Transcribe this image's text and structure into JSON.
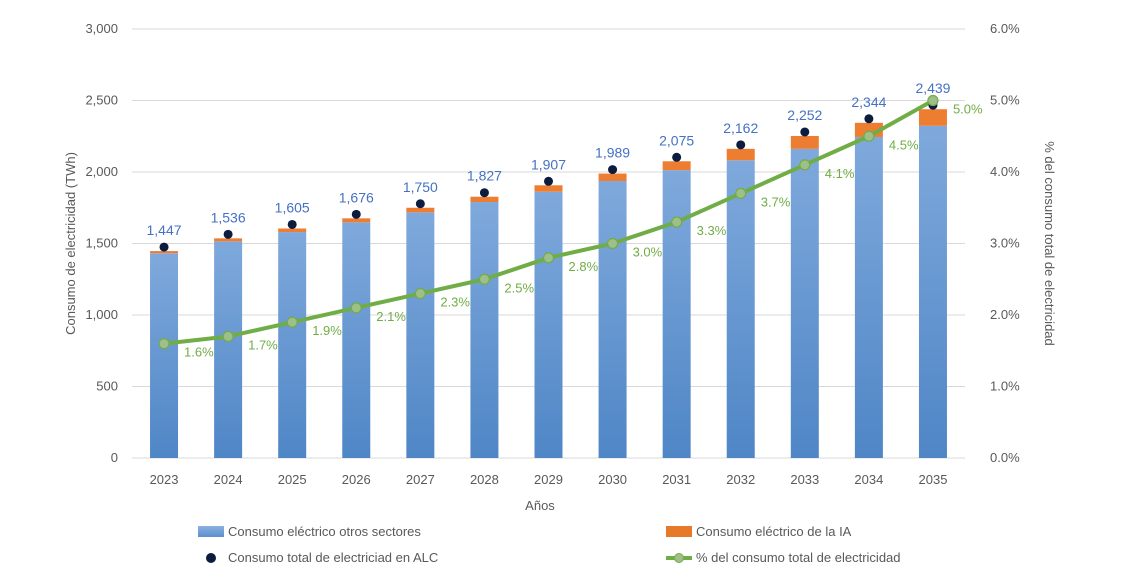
{
  "chart_data": {
    "type": "bar",
    "categories": [
      "2023",
      "2024",
      "2025",
      "2026",
      "2027",
      "2028",
      "2029",
      "2030",
      "2031",
      "2032",
      "2033",
      "2034",
      "2035"
    ],
    "series": [
      {
        "name": "Consumo eléctrico otros sectores",
        "kind": "bar-stack",
        "color": "#5b9bd5",
        "values": [
          1432,
          1515,
          1580,
          1648,
          1718,
          1790,
          1862,
          1937,
          2013,
          2082,
          2162,
          2245,
          2323
        ]
      },
      {
        "name": "Consumo eléctrico de la IA",
        "kind": "bar-stack",
        "color": "#ed7d31",
        "values": [
          15,
          21,
          25,
          28,
          32,
          37,
          45,
          52,
          62,
          80,
          90,
          99,
          116
        ]
      },
      {
        "name": "Consumo total de electriciad en ALC",
        "kind": "marker",
        "color": "#0b1c3f",
        "values": [
          1447,
          1536,
          1605,
          1676,
          1750,
          1827,
          1907,
          1989,
          2075,
          2162,
          2252,
          2344,
          2439
        ]
      },
      {
        "name": "% del consumo total de electricidad",
        "kind": "line",
        "axis": "right",
        "color": "#70ad47",
        "values": [
          1.6,
          1.7,
          1.9,
          2.1,
          2.3,
          2.5,
          2.8,
          3.0,
          3.3,
          3.7,
          4.1,
          4.5,
          5.0
        ]
      }
    ],
    "total_labels": [
      "1,447",
      "1,536",
      "1,605",
      "1,676",
      "1,750",
      "1,827",
      "1,907",
      "1,989",
      "2,075",
      "2,162",
      "2,252",
      "2,344",
      "2,439"
    ],
    "pct_labels": [
      "1.6%",
      "1.7%",
      "1.9%",
      "2.1%",
      "2.3%",
      "2.5%",
      "2.8%",
      "3.0%",
      "3.3%",
      "3.7%",
      "4.1%",
      "4.5%",
      "5.0%"
    ],
    "xlabel": "Años",
    "ylabel": "Consumo de electricidad (TWh)",
    "y2label": "% del consumo total de electricidad",
    "ylim": [
      0,
      3000
    ],
    "y2lim": [
      0,
      6
    ],
    "yticks": [
      "0",
      "500",
      "1,000",
      "1,500",
      "2,000",
      "2,500",
      "3,000"
    ],
    "y2ticks": [
      "0.0%",
      "1.0%",
      "2.0%",
      "3.0%",
      "4.0%",
      "5.0%",
      "6.0%"
    ],
    "grid": true,
    "legend_position": "bottom"
  },
  "legend": {
    "item1": "Consumo eléctrico otros sectores",
    "item2": "Consumo eléctrico de la IA",
    "item3": "Consumo total de electriciad en ALC",
    "item4": "% del consumo total de electricidad"
  }
}
